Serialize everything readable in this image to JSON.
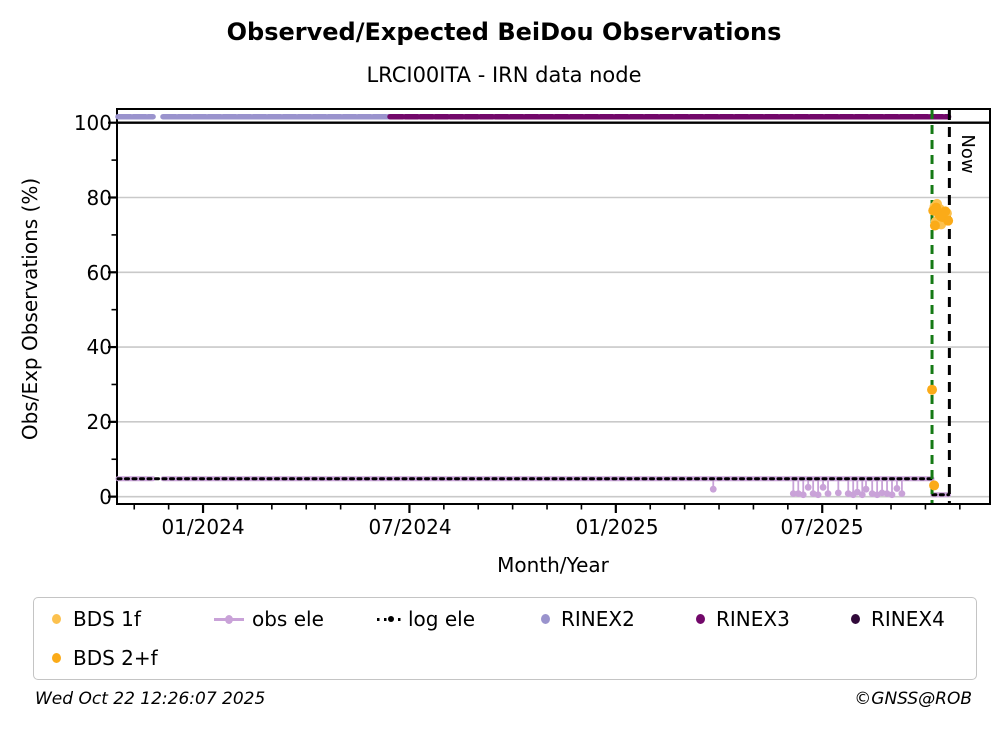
{
  "title": "Observed/Expected BeiDou Observations",
  "subtitle": "LRCI00ITA - IRN data node",
  "footer": {
    "timestamp": "Wed Oct 22 12:26:07 2025",
    "copyright": "©GNSS@ROB"
  },
  "chart_data": {
    "type": "line",
    "title": "Observed/Expected BeiDou Observations",
    "subtitle": "LRCI00ITA - IRN data node",
    "xlabel": "Month/Year",
    "ylabel": "Obs/Exp Observations (%)",
    "x_tick_labels": [
      "01/2024",
      "07/2024",
      "01/2025",
      "07/2025"
    ],
    "x_tick_values": [
      2024.0,
      2024.5,
      2025.0,
      2025.5
    ],
    "y_tick_labels": [
      "100",
      "80",
      "60",
      "40",
      "20",
      "0"
    ],
    "y_tick_values": [
      100,
      80,
      60,
      40,
      20,
      0
    ],
    "y_minor_ticks": [
      10,
      30,
      50,
      70,
      90
    ],
    "xlim": [
      2023.794,
      2025.904
    ],
    "ylim": [
      -1.7,
      103.4
    ],
    "grid_y": [
      0,
      20,
      40,
      60,
      80
    ],
    "grid_color": "#c9c9c9",
    "reference_lines": [
      {
        "axis": "y",
        "value": 100,
        "color": "#000000",
        "width": 2.4
      }
    ],
    "vlines": [
      {
        "x": 2025.766,
        "color": "#157a15",
        "dash": "9 6",
        "label": ""
      },
      {
        "x": 2025.808,
        "color": "#000000",
        "dash": "10 7",
        "label": "Now"
      }
    ],
    "now_label": "Now",
    "series": [
      {
        "name": "obs ele",
        "type": "line",
        "color": "#c9a2d8",
        "width": 5,
        "base": 4.8,
        "segments": [
          [
            [
              2023.794,
              4.8
            ],
            [
              2023.879,
              4.8
            ]
          ],
          [
            [
              2023.903,
              4.8
            ],
            [
              2025.766,
              4.8
            ]
          ],
          [
            [
              2025.768,
              0.5
            ],
            [
              2025.806,
              0.5
            ]
          ]
        ],
        "dips": [
          [
            2025.236,
            2.0
          ],
          [
            2025.43,
            0.8
          ],
          [
            2025.442,
            0.8
          ],
          [
            2025.454,
            0.5
          ],
          [
            2025.466,
            2.5
          ],
          [
            2025.478,
            0.8
          ],
          [
            2025.49,
            0.5
          ],
          [
            2025.502,
            2.5
          ],
          [
            2025.514,
            0.8
          ],
          [
            2025.539,
            1.0
          ],
          [
            2025.563,
            0.8
          ],
          [
            2025.575,
            0.5
          ],
          [
            2025.585,
            1.2
          ],
          [
            2025.597,
            0.5
          ],
          [
            2025.606,
            2.0
          ],
          [
            2025.621,
            0.8
          ],
          [
            2025.633,
            0.5
          ],
          [
            2025.645,
            1.0
          ],
          [
            2025.657,
            0.8
          ],
          [
            2025.669,
            0.5
          ],
          [
            2025.681,
            2.2
          ],
          [
            2025.693,
            0.8
          ]
        ]
      },
      {
        "name": "log ele",
        "type": "line",
        "color": "#000000",
        "width": 3,
        "dash": "3 4.5",
        "segments": [
          [
            [
              2023.794,
              4.8
            ],
            [
              2025.766,
              4.8
            ]
          ],
          [
            [
              2025.768,
              0.5
            ],
            [
              2025.806,
              0.5
            ]
          ]
        ]
      },
      {
        "name": "RINEX2",
        "type": "line",
        "color": "#9a93cd",
        "width": 5.5,
        "dash": "13 2",
        "segments": [
          [
            [
              2023.794,
              101.6
            ],
            [
              2023.879,
              101.6
            ]
          ],
          [
            [
              2023.903,
              101.6
            ],
            [
              2024.453,
              101.6
            ]
          ]
        ]
      },
      {
        "name": "RINEX3",
        "type": "line",
        "color": "#72086a",
        "width": 5.5,
        "dash": "13 2",
        "segments": [
          [
            [
              2024.453,
              101.6
            ],
            [
              2025.806,
              101.6
            ]
          ]
        ]
      },
      {
        "name": "RINEX4",
        "type": "line",
        "color": "#31093a",
        "width": 5.5,
        "segments": []
      },
      {
        "name": "BDS 1f",
        "type": "scatter",
        "color": "#fcc14e",
        "size": 10,
        "points": [
          [
            2025.772,
            77.5
          ],
          [
            2025.778,
            78.3
          ],
          [
            2025.784,
            77.0
          ],
          [
            2025.79,
            76.2
          ],
          [
            2025.797,
            74.5
          ],
          [
            2025.802,
            75.8
          ],
          [
            2025.775,
            73.5
          ],
          [
            2025.788,
            72.8
          ]
        ]
      },
      {
        "name": "BDS 2+f",
        "type": "scatter",
        "color": "#fbab18",
        "size": 10,
        "points": [
          [
            2025.769,
            76.5
          ],
          [
            2025.776,
            77.3
          ],
          [
            2025.783,
            75.5
          ],
          [
            2025.791,
            74.8
          ],
          [
            2025.798,
            76.3
          ],
          [
            2025.805,
            73.8
          ],
          [
            2025.773,
            72.5
          ],
          [
            2025.787,
            75.0
          ],
          [
            2025.766,
            28.6
          ],
          [
            2025.771,
            3.0
          ]
        ]
      }
    ]
  },
  "legend": {
    "items": [
      {
        "label": "BDS 1f",
        "marker": "dot",
        "color": "#fcc14e"
      },
      {
        "label": "obs ele",
        "marker": "line-dot",
        "color": "#c9a2d8"
      },
      {
        "label": "log ele",
        "marker": "dotted-line",
        "color": "#000000"
      },
      {
        "label": "RINEX2",
        "marker": "dot",
        "color": "#9a93cd"
      },
      {
        "label": "RINEX3",
        "marker": "dot",
        "color": "#72086a"
      },
      {
        "label": "RINEX4",
        "marker": "dot",
        "color": "#31093a"
      },
      {
        "label": "BDS 2+f",
        "marker": "dot",
        "color": "#fbab18"
      }
    ]
  }
}
